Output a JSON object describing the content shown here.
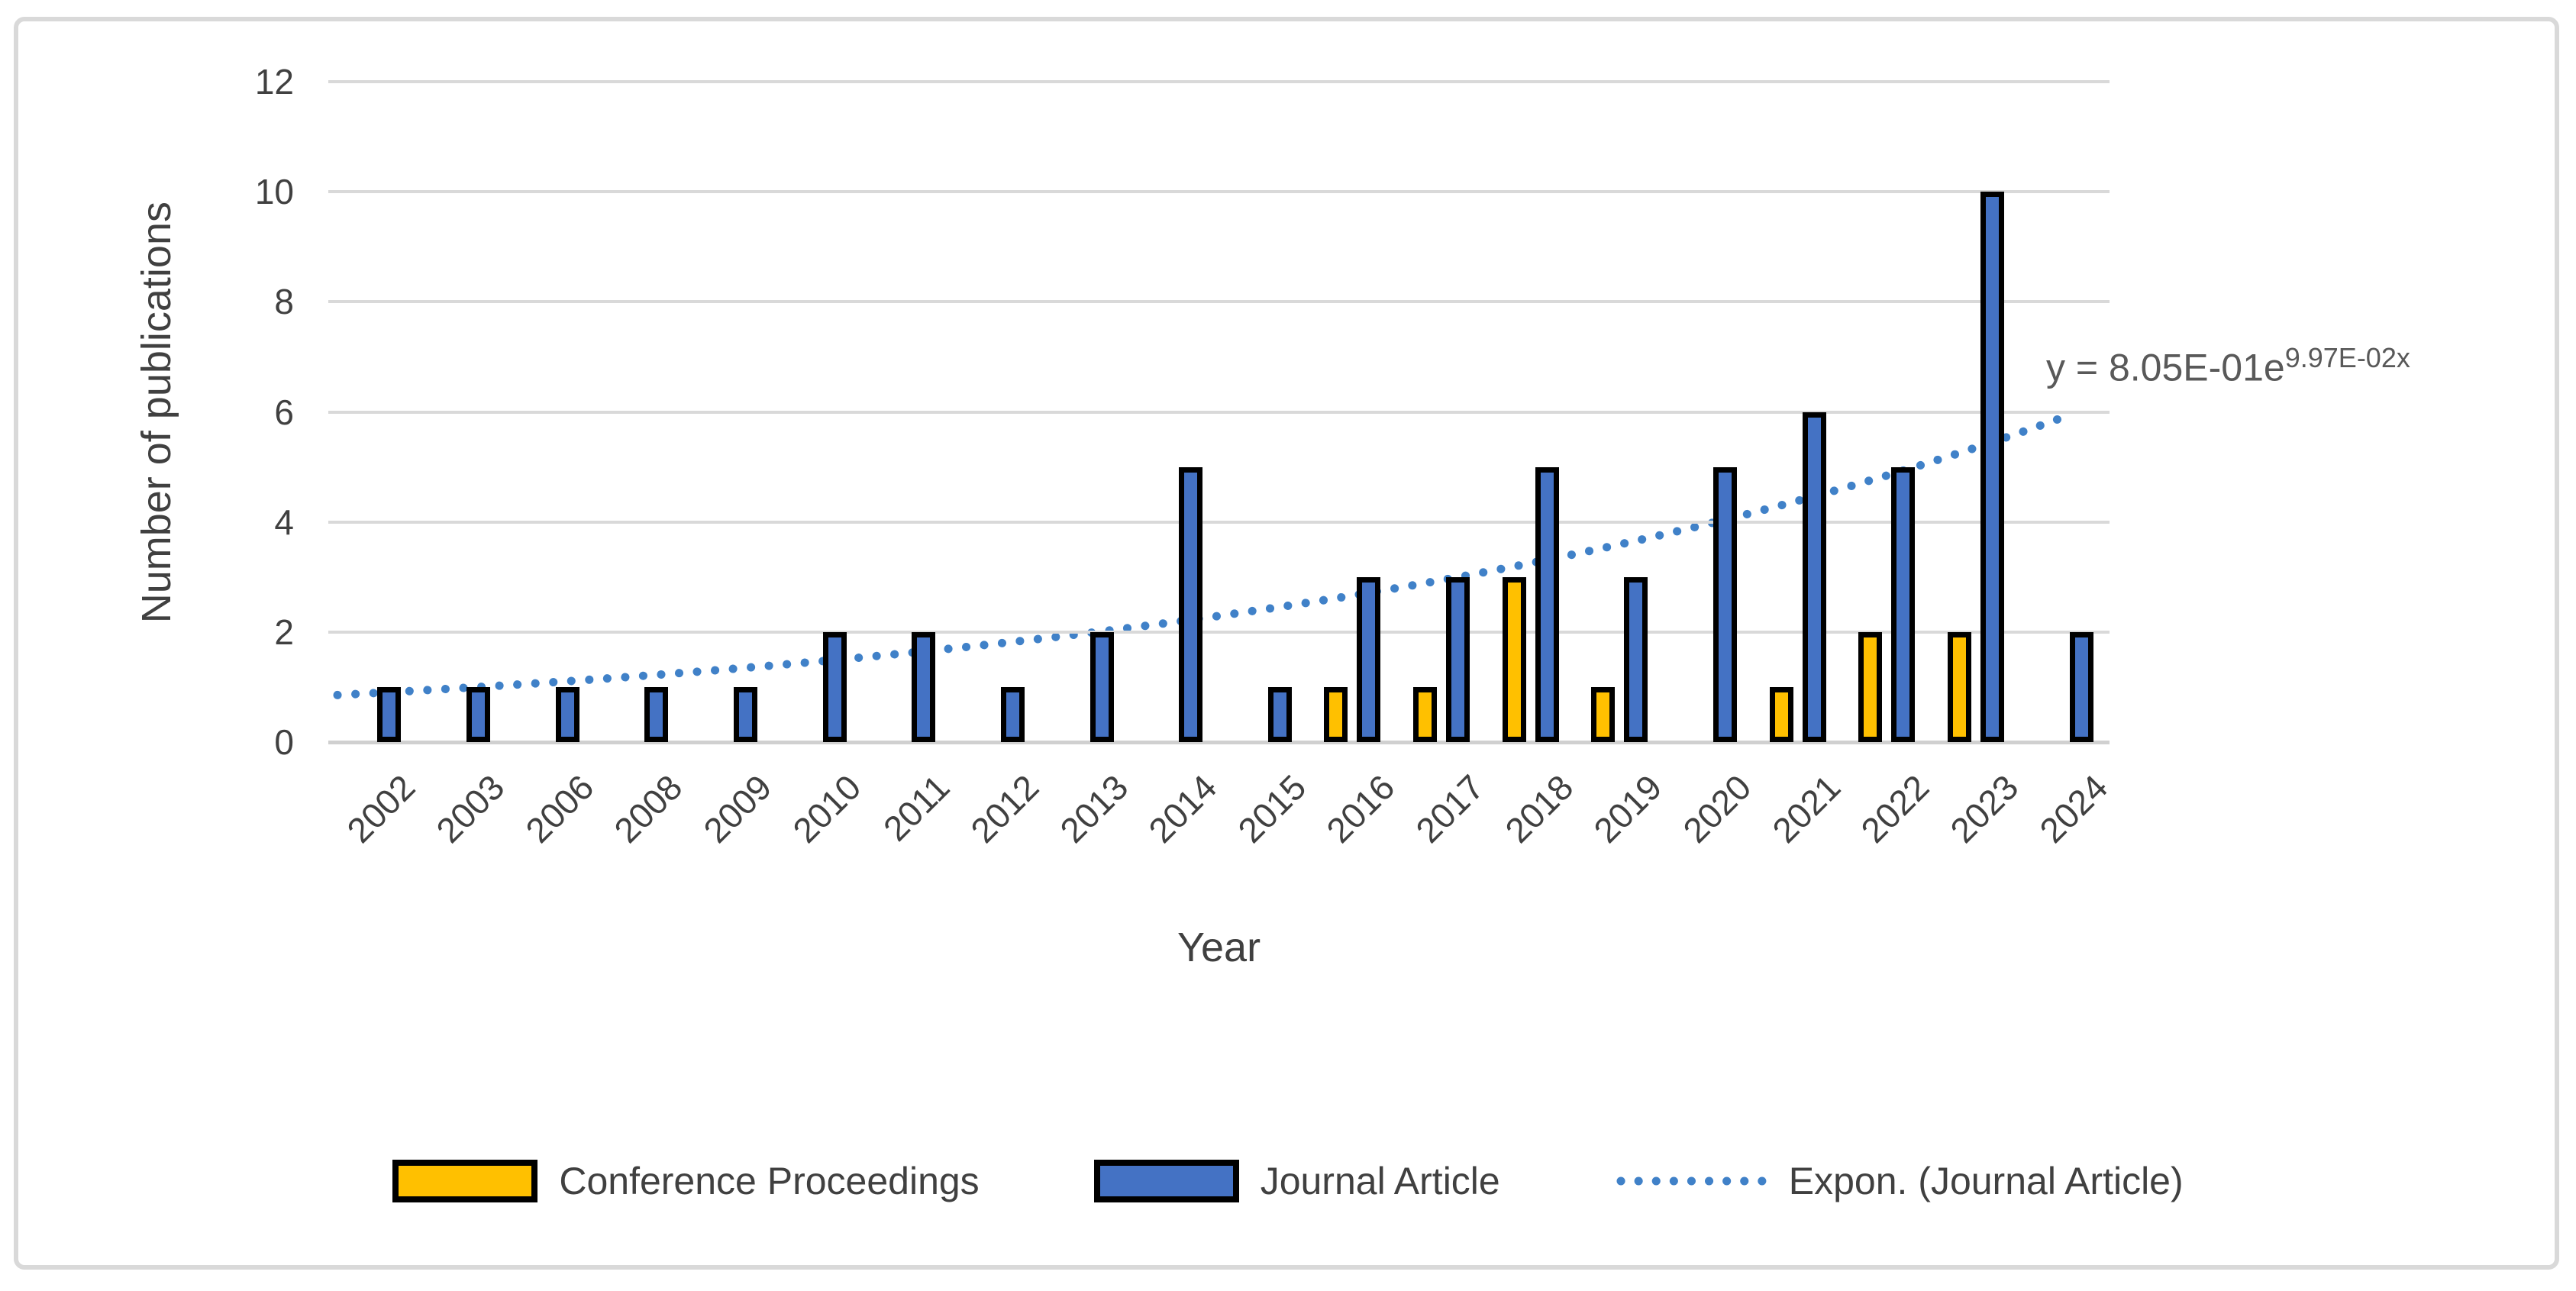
{
  "frame": {
    "border_color": "#d9d9d9",
    "background": "#ffffff"
  },
  "chart_data": {
    "type": "bar",
    "title": "",
    "xlabel": "Year",
    "ylabel": "Number of publications",
    "ylim": [
      0,
      12
    ],
    "yticks": [
      0,
      2,
      4,
      6,
      8,
      10,
      12
    ],
    "grid": true,
    "legend_position": "bottom-center",
    "categories": [
      "2002",
      "2003",
      "2006",
      "2008",
      "2009",
      "2010",
      "2011",
      "2012",
      "2013",
      "2014",
      "2015",
      "2016",
      "2017",
      "2018",
      "2019",
      "2020",
      "2021",
      "2022",
      "2023",
      "2024"
    ],
    "series": [
      {
        "name": "Conference Proceedings",
        "color": "#FFC000",
        "values": [
          0,
          0,
          0,
          0,
          0,
          0,
          0,
          0,
          0,
          0,
          0,
          1,
          1,
          3,
          1,
          0,
          1,
          2,
          2,
          0
        ]
      },
      {
        "name": "Journal Article",
        "color": "#4472C4",
        "values": [
          1,
          1,
          1,
          1,
          1,
          2,
          2,
          1,
          2,
          5,
          1,
          3,
          3,
          5,
          3,
          5,
          6,
          5,
          10,
          2
        ]
      }
    ],
    "trendline": {
      "name": "Expon. (Journal Article)",
      "type": "exponential",
      "a": 0.805,
      "b": 0.0997,
      "equation_text": "y = 8.05E-01e",
      "equation_sup": "9.97E-02x",
      "color": "#4081C8",
      "style": "dotted"
    },
    "bar_border_color": "#000000",
    "gridline_color": "#d9d9d9",
    "axis_text_color": "#404040",
    "equation_color": "#595959"
  }
}
